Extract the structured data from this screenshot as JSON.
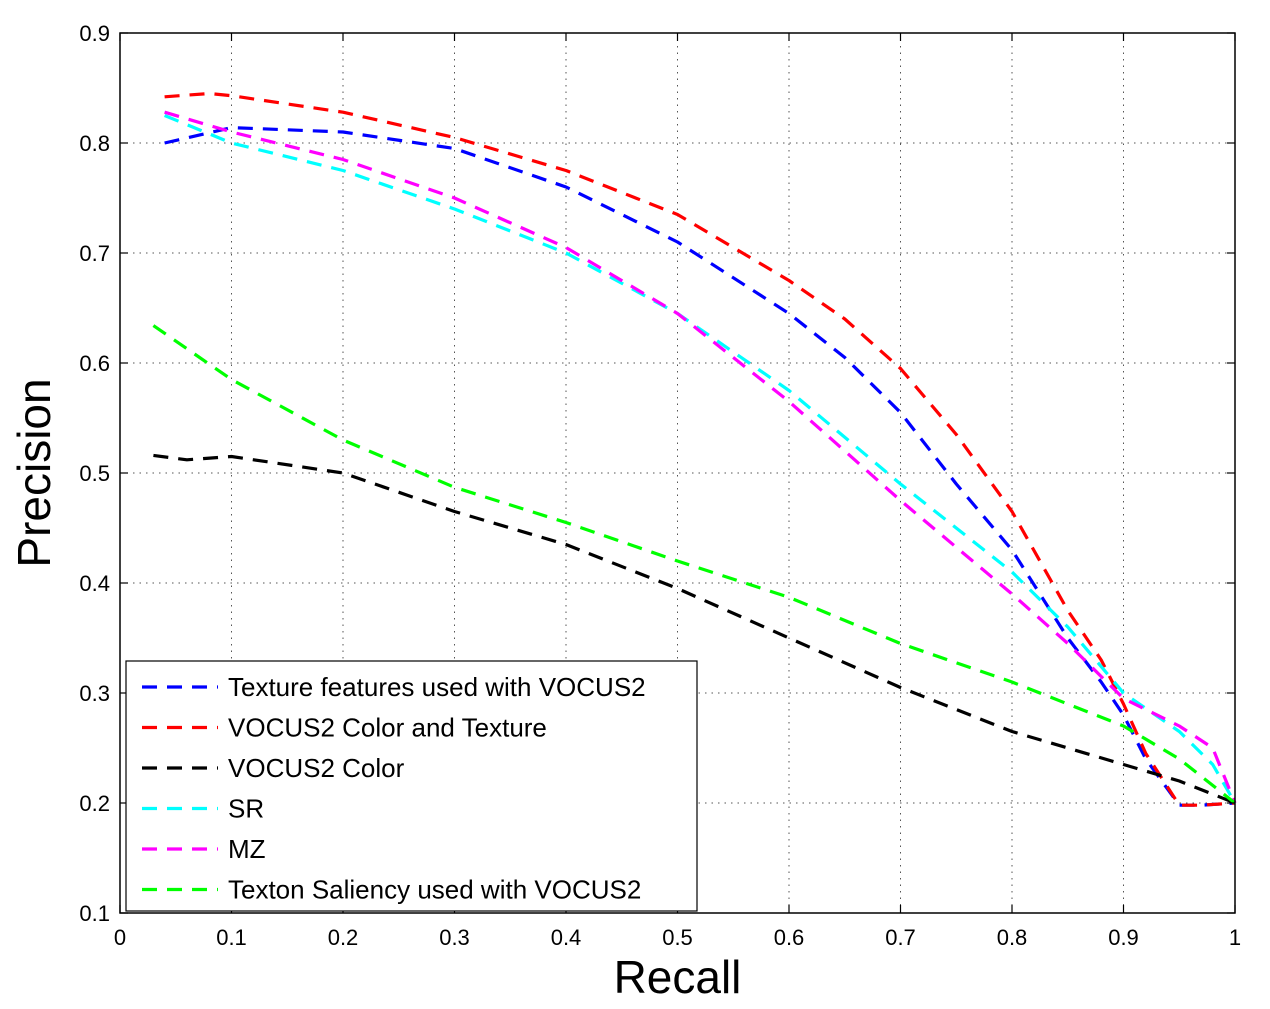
{
  "chart_data": {
    "type": "line",
    "title": "",
    "xlabel": "Recall",
    "ylabel": "Precision",
    "xlim": [
      0,
      1
    ],
    "ylim": [
      0.1,
      0.9
    ],
    "xticks": [
      0,
      0.1,
      0.2,
      0.3,
      0.4,
      0.5,
      0.6,
      0.7,
      0.8,
      0.9,
      1
    ],
    "xtick_labels": [
      "0",
      "0.1",
      "0.2",
      "0.3",
      "0.4",
      "0.5",
      "0.6",
      "0.7",
      "0.8",
      "0.9",
      "1"
    ],
    "yticks": [
      0.1,
      0.2,
      0.3,
      0.4,
      0.5,
      0.6,
      0.7,
      0.8,
      0.9
    ],
    "ytick_labels": [
      "0.1",
      "0.2",
      "0.3",
      "0.4",
      "0.5",
      "0.6",
      "0.7",
      "0.8",
      "0.9"
    ],
    "grid": true,
    "line_style": "dashed",
    "legend_position": "bottom-left",
    "series": [
      {
        "name": "Texture features used with VOCUS2",
        "color": "#0000ff",
        "x": [
          0.04,
          0.1,
          0.2,
          0.3,
          0.4,
          0.5,
          0.6,
          0.65,
          0.7,
          0.75,
          0.8,
          0.85,
          0.88,
          0.9,
          0.92,
          0.95,
          0.97,
          1.0
        ],
        "y": [
          0.8,
          0.814,
          0.81,
          0.795,
          0.76,
          0.71,
          0.645,
          0.605,
          0.555,
          0.49,
          0.43,
          0.35,
          0.31,
          0.28,
          0.24,
          0.198,
          0.198,
          0.2
        ]
      },
      {
        "name": "VOCUS2 Color and Texture",
        "color": "#ff0000",
        "x": [
          0.04,
          0.08,
          0.1,
          0.2,
          0.3,
          0.4,
          0.5,
          0.55,
          0.6,
          0.65,
          0.7,
          0.75,
          0.8,
          0.85,
          0.88,
          0.9,
          0.92,
          0.95,
          0.97,
          1.0
        ],
        "y": [
          0.842,
          0.845,
          0.843,
          0.828,
          0.805,
          0.775,
          0.735,
          0.705,
          0.675,
          0.64,
          0.595,
          0.535,
          0.465,
          0.375,
          0.33,
          0.29,
          0.245,
          0.198,
          0.198,
          0.2
        ]
      },
      {
        "name": "VOCUS2 Color",
        "color": "#000000",
        "x": [
          0.03,
          0.06,
          0.1,
          0.2,
          0.3,
          0.4,
          0.5,
          0.6,
          0.7,
          0.8,
          0.9,
          0.95,
          1.0
        ],
        "y": [
          0.516,
          0.512,
          0.515,
          0.5,
          0.465,
          0.435,
          0.395,
          0.35,
          0.305,
          0.265,
          0.235,
          0.22,
          0.2
        ]
      },
      {
        "name": "SR",
        "color": "#00ffff",
        "x": [
          0.04,
          0.1,
          0.2,
          0.3,
          0.4,
          0.5,
          0.6,
          0.7,
          0.8,
          0.85,
          0.9,
          0.95,
          0.98,
          1.0
        ],
        "y": [
          0.825,
          0.8,
          0.775,
          0.74,
          0.7,
          0.645,
          0.575,
          0.49,
          0.41,
          0.36,
          0.3,
          0.265,
          0.235,
          0.2
        ]
      },
      {
        "name": "MZ",
        "color": "#ff00ff",
        "x": [
          0.04,
          0.1,
          0.2,
          0.3,
          0.4,
          0.5,
          0.6,
          0.7,
          0.8,
          0.85,
          0.9,
          0.95,
          0.98,
          1.0
        ],
        "y": [
          0.828,
          0.81,
          0.785,
          0.75,
          0.705,
          0.645,
          0.565,
          0.475,
          0.39,
          0.345,
          0.295,
          0.27,
          0.25,
          0.2
        ]
      },
      {
        "name": "Texton Saliency used with VOCUS2",
        "color": "#00ff00",
        "x": [
          0.03,
          0.1,
          0.2,
          0.3,
          0.4,
          0.5,
          0.6,
          0.7,
          0.8,
          0.9,
          0.95,
          1.0
        ],
        "y": [
          0.634,
          0.585,
          0.53,
          0.487,
          0.455,
          0.42,
          0.387,
          0.345,
          0.31,
          0.27,
          0.24,
          0.2
        ]
      }
    ]
  }
}
